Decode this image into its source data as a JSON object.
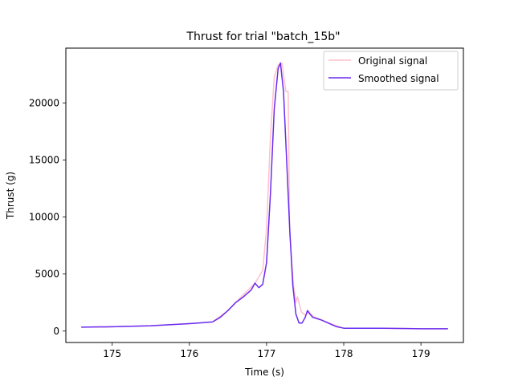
{
  "chart_data": {
    "type": "line",
    "title": "Thrust for trial \"batch_15b\"",
    "xlabel": "Time (s)",
    "ylabel": "Thrust (g)",
    "xlim": [
      174.4,
      179.55
    ],
    "ylim": [
      -1000,
      24800
    ],
    "xticks": [
      175,
      176,
      177,
      178,
      179
    ],
    "yticks": [
      0,
      5000,
      10000,
      15000,
      20000
    ],
    "grid": false,
    "legend_position": "top-right",
    "series": [
      {
        "name": "Original signal",
        "color": "#ffc0cb",
        "x": [
          174.6,
          175.0,
          175.5,
          176.0,
          176.3,
          176.5,
          176.7,
          176.85,
          176.95,
          177.0,
          177.05,
          177.1,
          177.15,
          177.2,
          177.25,
          177.28,
          177.3,
          177.35,
          177.38,
          177.4,
          177.45,
          177.5,
          177.55,
          177.6,
          177.7,
          177.85,
          178.0,
          178.5,
          179.0,
          179.35
        ],
        "y": [
          340,
          380,
          470,
          650,
          800,
          1800,
          3200,
          4200,
          5300,
          9000,
          17000,
          22300,
          23300,
          23500,
          21000,
          21000,
          8500,
          4000,
          2500,
          3000,
          1700,
          1400,
          1700,
          1300,
          1000,
          600,
          250,
          250,
          200,
          200
        ]
      },
      {
        "name": "Smoothed signal",
        "color": "#6a2cf0",
        "x": [
          174.6,
          175.0,
          175.5,
          176.0,
          176.3,
          176.4,
          176.5,
          176.6,
          176.7,
          176.8,
          176.85,
          176.9,
          176.95,
          177.0,
          177.05,
          177.1,
          177.15,
          177.18,
          177.22,
          177.26,
          177.3,
          177.34,
          177.38,
          177.42,
          177.46,
          177.5,
          177.53,
          177.56,
          177.6,
          177.7,
          177.8,
          177.9,
          178.0,
          178.5,
          179.0,
          179.35
        ],
        "y": [
          340,
          380,
          470,
          650,
          800,
          1200,
          1800,
          2500,
          3000,
          3600,
          4200,
          3800,
          4100,
          6000,
          12000,
          19500,
          23000,
          23500,
          21000,
          15000,
          9000,
          4000,
          1500,
          700,
          700,
          1200,
          1800,
          1500,
          1200,
          1000,
          700,
          400,
          250,
          250,
          200,
          200
        ]
      }
    ]
  }
}
